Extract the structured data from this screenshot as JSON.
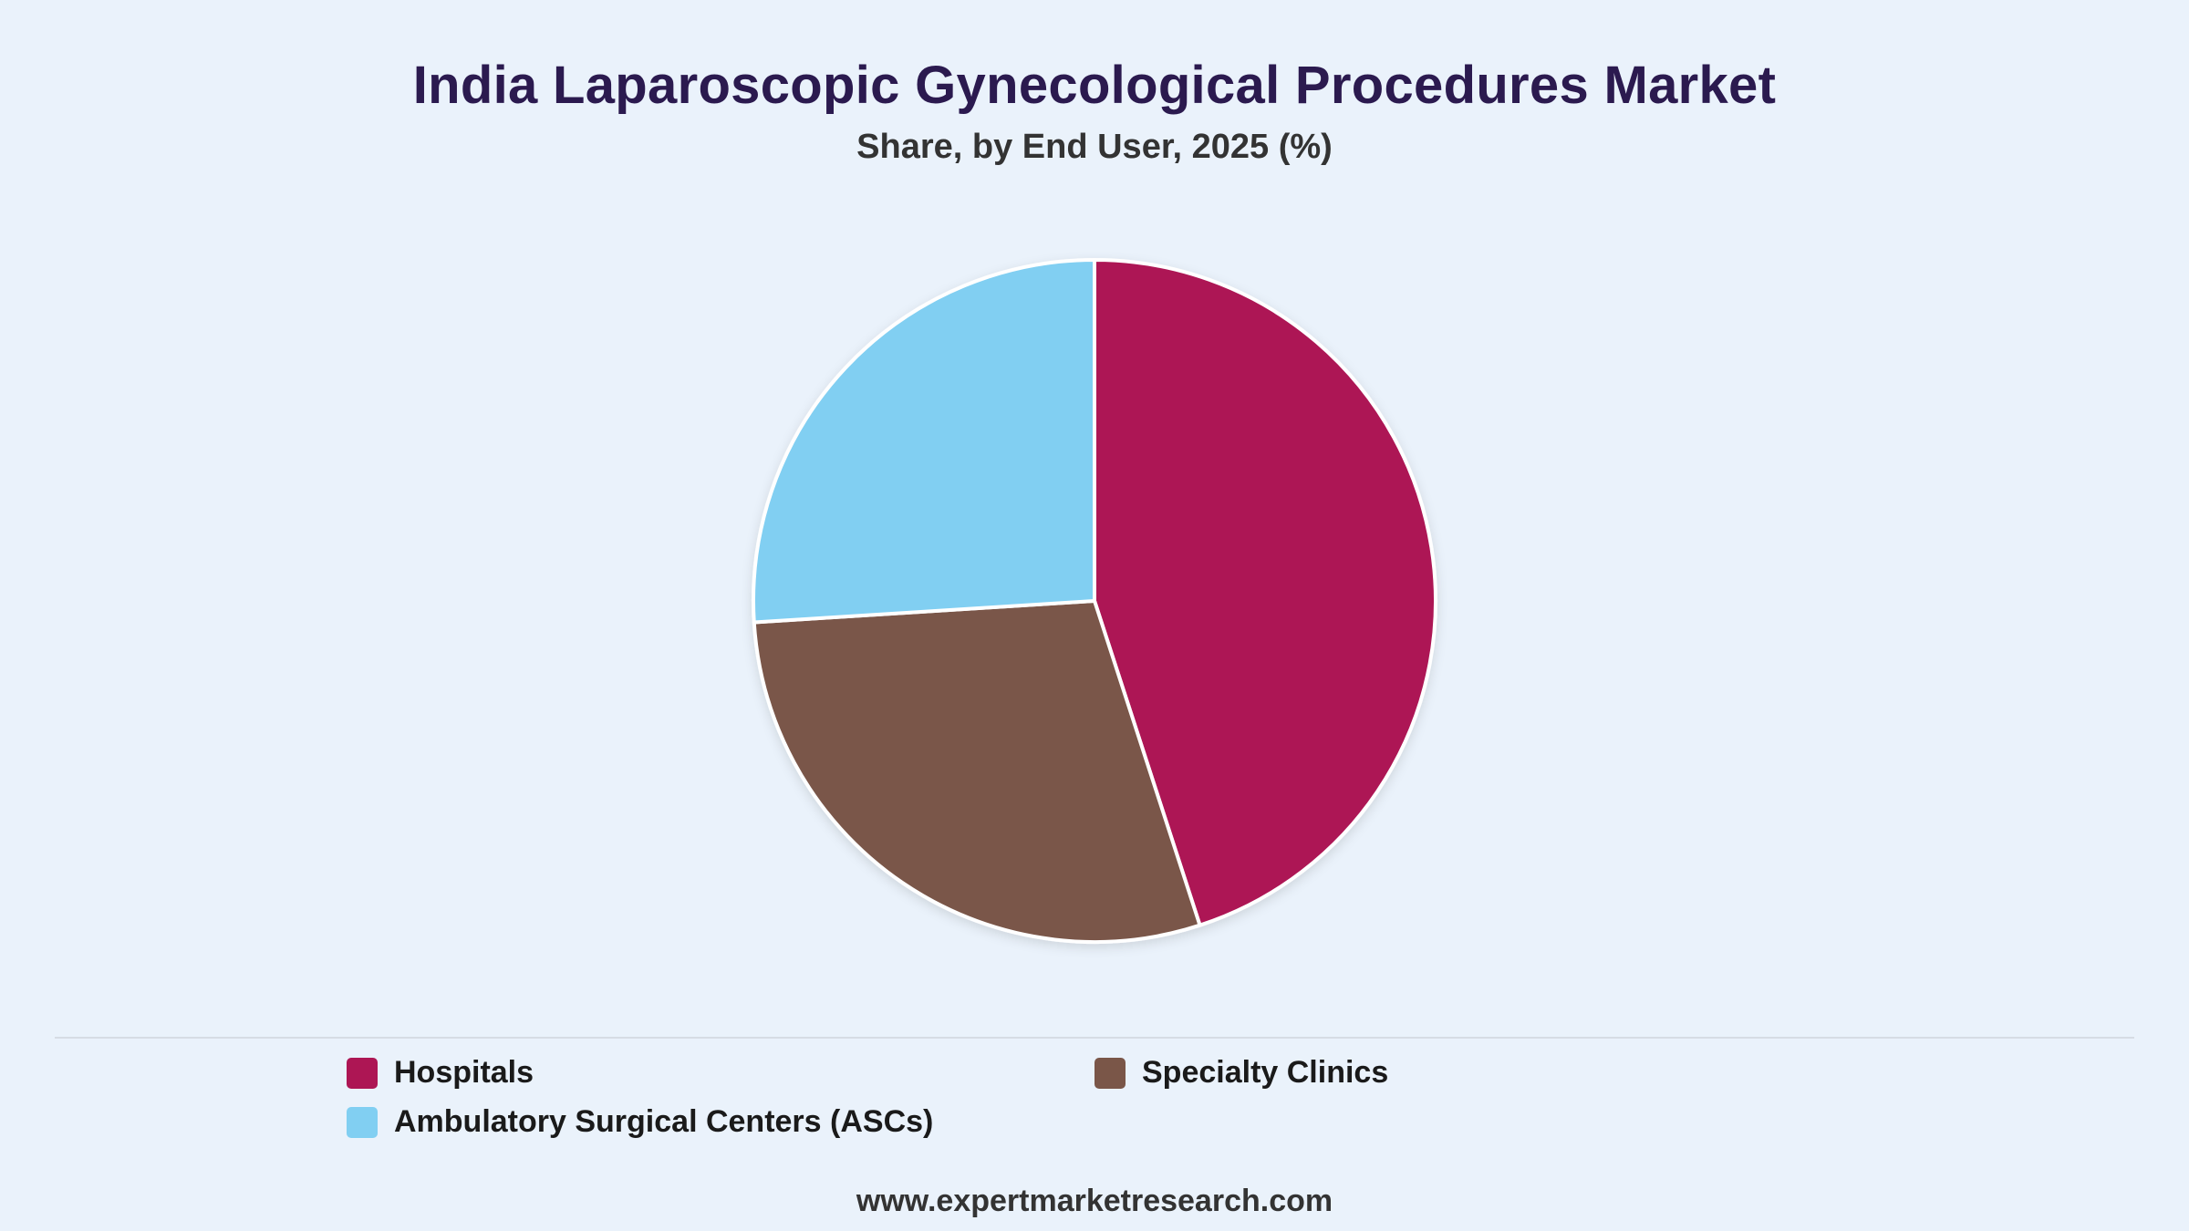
{
  "chart_data": {
    "type": "pie",
    "title": "India Laparoscopic Gynecological Procedures Market",
    "subtitle": "Share, by End User, 2025 (%)",
    "categories": [
      "Hospitals",
      "Specialty Clinics",
      "Ambulatory Surgical Centers (ASCs)"
    ],
    "values": [
      45,
      29,
      26
    ],
    "colors": [
      "#ad1654",
      "#7a5648",
      "#81cff2"
    ],
    "start_angle_deg": 0,
    "direction": "clockwise",
    "legend_position": "bottom"
  },
  "footer": {
    "source": "www.expertmarketresearch.com"
  }
}
